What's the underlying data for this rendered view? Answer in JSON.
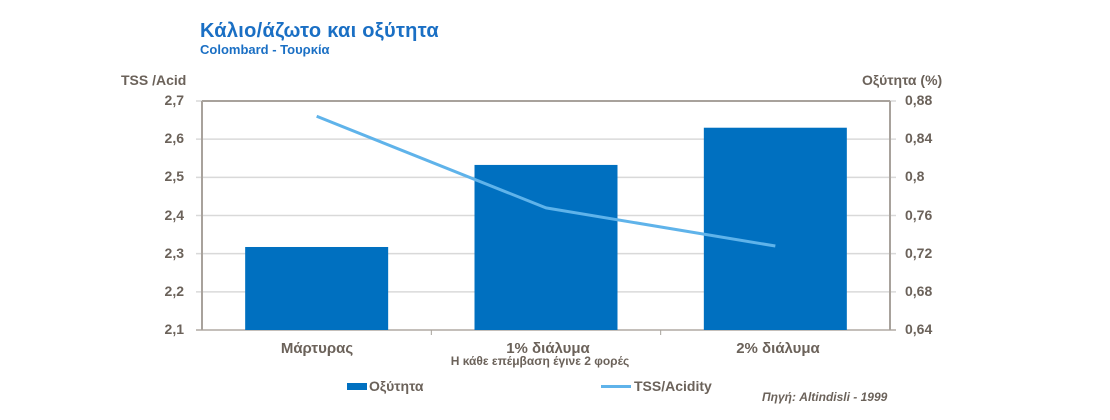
{
  "title": "Κάλιο/άζωτο και οξύτητα",
  "subtitle": "Colombard - Τουρκία",
  "left_axis_title": "TSS /Acid",
  "right_axis_title": "Οξύτητα (%)",
  "left_ticks": [
    "2,7",
    "2,6",
    "2,5",
    "2,4",
    "2,3",
    "2,2",
    "2,1"
  ],
  "right_ticks": [
    "0,88",
    "0,84",
    "0,8",
    "0,76",
    "0,72",
    "0,68",
    "0,64"
  ],
  "categories": [
    "Μάρτυρας",
    "1% διάλυμα",
    "2% διάλυμα"
  ],
  "x_note": "Η κάθε επέμβαση έγινε 2 φορές",
  "legend": {
    "bar_label": "Οξύτητα",
    "line_label": "TSS/Acidity"
  },
  "source": "Πηγή: Altindisli - 1999",
  "colors": {
    "bar": "#0070c0",
    "line": "#5fb3ea",
    "title": "#1a6fc4",
    "text": "#6b625a",
    "grid": "#d9d9d9"
  },
  "chart_data": {
    "type": "bar+line",
    "title": "Κάλιο/άζωτο και οξύτητα",
    "subtitle": "Colombard - Τουρκία",
    "categories": [
      "Μάρτυρας",
      "1% διάλυμα",
      "2% διάλυμα"
    ],
    "xlabel": "Η κάθε επέμβαση έγινε 2 φορές",
    "series": [
      {
        "name": "Οξύτητα",
        "type": "bar",
        "axis": "right",
        "values": [
          0.727,
          0.813,
          0.852
        ]
      },
      {
        "name": "TSS/Acidity",
        "type": "line",
        "axis": "left",
        "values": [
          2.66,
          2.42,
          2.32
        ]
      }
    ],
    "ylabel_left": "TSS /Acid",
    "ylim_left": [
      2.1,
      2.7
    ],
    "ylabel_right": "Οξύτητα (%)",
    "ylim_right": [
      0.64,
      0.88
    ],
    "grid": true,
    "legend_position": "bottom",
    "annotation": "Πηγή: Altindisli - 1999"
  }
}
